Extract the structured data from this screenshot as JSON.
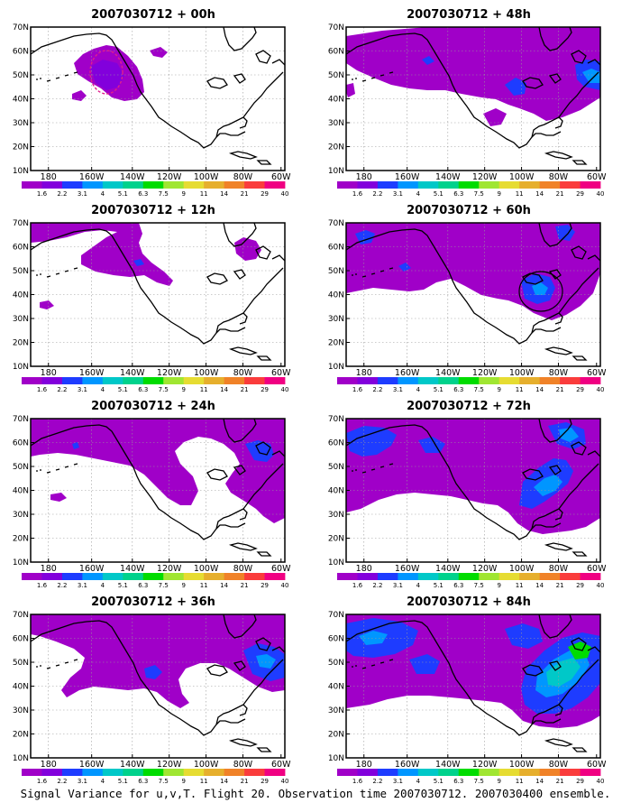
{
  "figure": {
    "caption": "Signal Variance for u,v,T. Flight 20. Observation time 2007030712. 2007030400 ensemble.",
    "panels": [
      {
        "title": "2007030712 + 00h"
      },
      {
        "title": "2007030712 + 48h"
      },
      {
        "title": "2007030712 + 12h"
      },
      {
        "title": "2007030712 + 60h"
      },
      {
        "title": "2007030712 + 24h"
      },
      {
        "title": "2007030712 + 72h"
      },
      {
        "title": "2007030712 + 36h"
      },
      {
        "title": "2007030712 + 84h"
      }
    ],
    "y_ticks": [
      "70N",
      "60N",
      "50N",
      "40N",
      "30N",
      "20N",
      "10N"
    ],
    "x_ticks": [
      "180",
      "160W",
      "140W",
      "120W",
      "100W",
      "80W",
      "60W"
    ],
    "colorbar": {
      "labels": [
        "1.6",
        "2.2",
        "3.1",
        "4",
        "5.1",
        "6.3",
        "7.5",
        "9",
        "11",
        "14",
        "21",
        "29",
        "40"
      ],
      "colors": [
        "#a000c8",
        "#8200dc",
        "#1e3cff",
        "#0096ff",
        "#00c8c8",
        "#00d28c",
        "#00dc00",
        "#a0e632",
        "#e6dc32",
        "#e6af2d",
        "#f08228",
        "#fa3c3c",
        "#f00082"
      ]
    },
    "shade_colors": {
      "level1": "#a000c8",
      "level2": "#8200dc",
      "level3": "#1e3cff",
      "level4": "#0096ff",
      "level5": "#00c8c8",
      "level6": "#00d28c",
      "level7": "#00dc00"
    }
  }
}
